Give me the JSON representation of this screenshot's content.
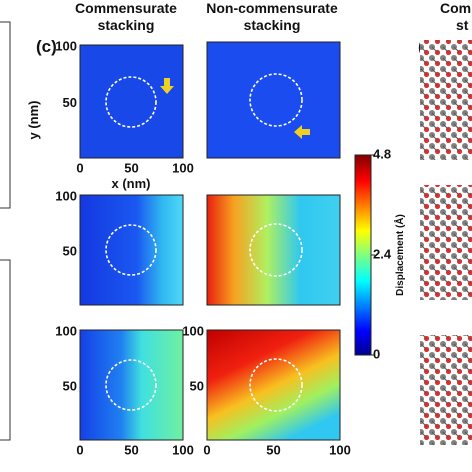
{
  "panel_c": {
    "label": "(c)",
    "column_titles": [
      [
        "Commensurate",
        "stacking"
      ],
      [
        "Non-commensurate",
        "stacking"
      ]
    ],
    "y_axis_label": "y (nm)",
    "x_axis_label": "x (nm)",
    "ticks": {
      "row1_left": {
        "yticks": [
          100,
          50
        ],
        "xticks": [
          0,
          50,
          100
        ]
      },
      "row2_left": {
        "yticks": [
          100,
          50
        ]
      },
      "row3_left": {
        "yticks": [
          100,
          50
        ],
        "xticks": [
          0,
          50,
          100
        ]
      },
      "row3_right": {
        "yticks": [
          100,
          50
        ],
        "xticks": [
          0,
          50,
          100
        ]
      }
    }
  },
  "colorbar": {
    "label": "Displacement (Å)",
    "ticks": [
      4.8,
      2.4,
      0
    ]
  },
  "panel_d": {
    "label": "(d)",
    "title_lines": [
      "Comm",
      "st"
    ]
  }
}
